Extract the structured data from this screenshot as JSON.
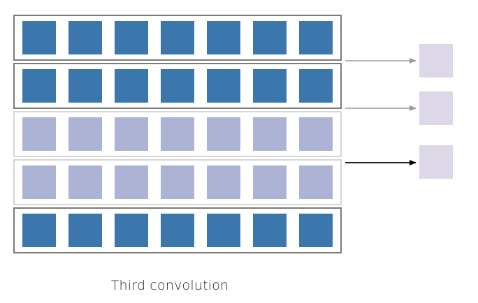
{
  "caption": "Third convolution",
  "rows": [
    {
      "state": "active"
    },
    {
      "state": "active"
    },
    {
      "state": "inactive"
    },
    {
      "state": "inactive"
    },
    {
      "state": "active"
    }
  ],
  "cells_per_row": 7,
  "outputs": [
    {
      "from_row": 0,
      "arrow": "gray"
    },
    {
      "from_row": 1,
      "arrow": "gray"
    },
    {
      "from_row": 3,
      "arrow": "black"
    }
  ],
  "colors": {
    "active_cell": "#3b76ad",
    "inactive_cell": "#adb3d5",
    "output_cell": "#dcd8e8",
    "active_row_border": "#7a7a7a",
    "inactive_row_border": "#c8c8c8",
    "arrow_gray": "#9a9a9a",
    "arrow_black": "#000000"
  }
}
